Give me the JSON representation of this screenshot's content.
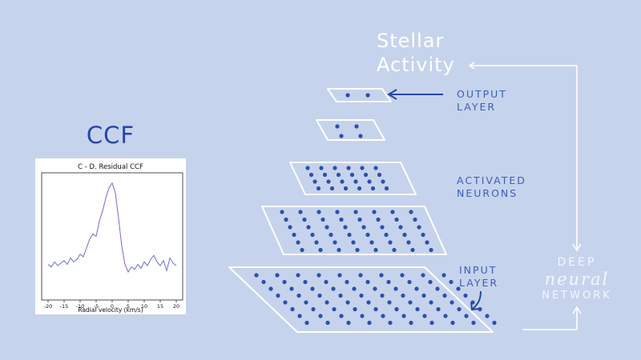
{
  "headings": {
    "ccf": "CCF",
    "stellar_line1": "Stellar",
    "stellar_line2": "Activity"
  },
  "annotations": {
    "output_line1": "OUTPUT",
    "output_line2": "LAYER",
    "activated_line1": "ACTIVATED",
    "activated_line2": "NEURONS",
    "input_line1": "INPUT",
    "input_line2": "LAYER",
    "dnn_line1": "DEEP",
    "dnn_line2": "neural",
    "dnn_line3": "NETWORK"
  },
  "colors": {
    "background": "#c6d3ec",
    "ink": "#2546a8",
    "annotation": "#3a5fb8",
    "layer_outline": "#ffffff",
    "neuron": "#2a4fb0",
    "plot_line": "#6b6fd0"
  },
  "layers": [
    {
      "name": "output",
      "neurons": 2
    },
    {
      "name": "hidden-1",
      "neurons": 4
    },
    {
      "name": "hidden-2",
      "neurons": 24
    },
    {
      "name": "hidden-3",
      "neurons": 48
    },
    {
      "name": "input",
      "neurons": 80
    }
  ],
  "chart_data": {
    "type": "line",
    "title": "C - D. Residual CCF",
    "xlabel": "Radial velocity (km/s)",
    "ylabel": "",
    "xlim": [
      -22,
      22
    ],
    "ylim": [
      0,
      1
    ],
    "xticks": [
      -20,
      -15,
      -10,
      -5,
      0,
      5,
      10,
      15,
      20
    ],
    "xtick_labels": [
      "-20",
      "-15",
      "-10",
      "-5",
      "0",
      "5",
      "10",
      "15",
      "20"
    ],
    "grid": false,
    "series": [
      {
        "x": [
          -20,
          -19,
          -18,
          -17,
          -16,
          -15,
          -14,
          -13,
          -12,
          -11,
          -10,
          -9,
          -8,
          -7,
          -6,
          -5,
          -4,
          -3,
          -2,
          -1,
          0,
          1,
          2,
          3,
          4,
          5,
          6,
          7,
          8,
          9,
          10,
          11,
          12,
          13,
          14,
          15,
          16,
          17,
          18,
          19,
          20
        ],
        "values": [
          0.28,
          0.26,
          0.3,
          0.27,
          0.29,
          0.31,
          0.28,
          0.33,
          0.3,
          0.32,
          0.36,
          0.34,
          0.41,
          0.48,
          0.52,
          0.5,
          0.62,
          0.7,
          0.8,
          0.88,
          0.92,
          0.84,
          0.64,
          0.42,
          0.28,
          0.22,
          0.26,
          0.24,
          0.28,
          0.25,
          0.3,
          0.27,
          0.32,
          0.35,
          0.3,
          0.27,
          0.31,
          0.23,
          0.33,
          0.29,
          0.27
        ]
      }
    ]
  }
}
